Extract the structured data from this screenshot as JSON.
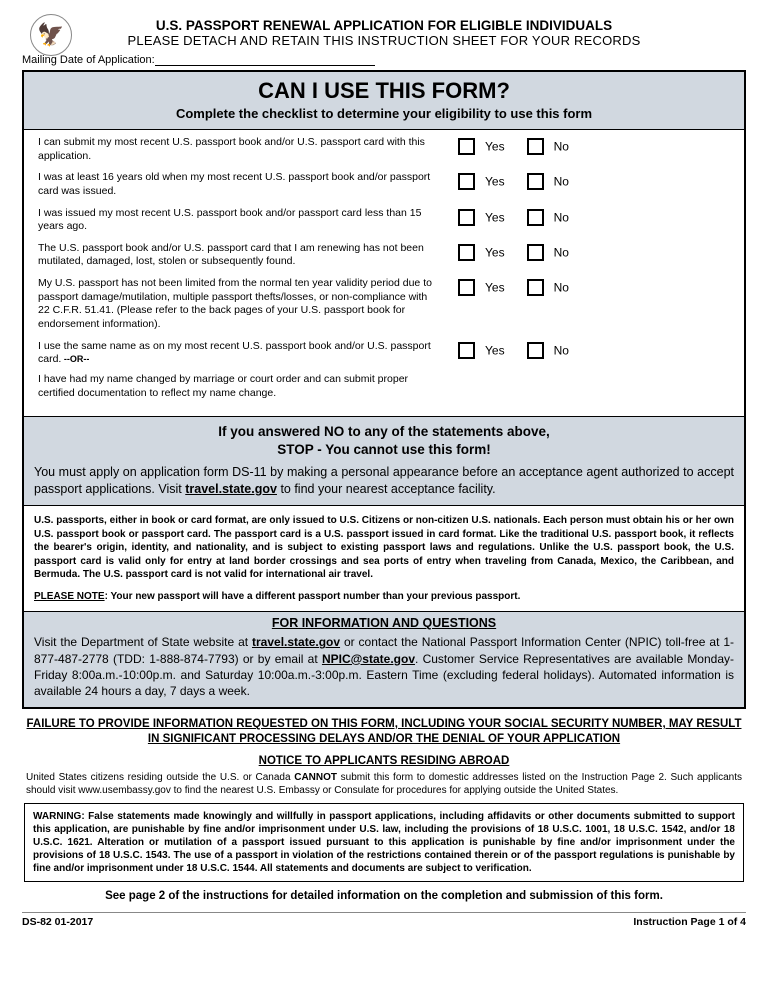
{
  "colors": {
    "blue_bg": "#d1d8e0",
    "text": "#000000",
    "border": "#000000",
    "page_bg": "#ffffff"
  },
  "header": {
    "title": "U.S. PASSPORT RENEWAL APPLICATION FOR ELIGIBLE INDIVIDUALS",
    "subtitle": "PLEASE DETACH AND RETAIN THIS INSTRUCTION SHEET FOR YOUR RECORDS",
    "mailing_label": "Mailing Date of Application:"
  },
  "question_header": {
    "title": "CAN I USE THIS FORM?",
    "subtitle": "Complete the checklist to determine your eligibility to use this form"
  },
  "yes_label": "Yes",
  "no_label": "No",
  "checklist": [
    {
      "text": "I can submit my most recent U.S. passport book and/or U.S. passport card with this application."
    },
    {
      "text": "I was at least 16 years old when my most recent U.S. passport book and/or passport card was issued."
    },
    {
      "text": "I was issued my most recent U.S. passport book and/or passport card less than 15 years ago."
    },
    {
      "text": "The U.S. passport book and/or U.S. passport card that I am renewing has not been mutilated, damaged, lost, stolen or subsequently found."
    },
    {
      "text": "My U.S. passport has not been limited from the normal ten year validity period due to passport damage/mutilation, multiple passport thefts/losses, or non-compliance with 22 C.F.R. 51.41.  (Please refer to the back pages of your U.S. passport book for endorsement information)."
    },
    {
      "text": "I use the same name as on my most recent U.S. passport book and/or U.S. passport card.",
      "or": "--OR--",
      "text2": "I have had my name changed by marriage or court order and can submit proper certified documentation to reflect my name change."
    }
  ],
  "stop": {
    "heading1": "If you answered NO to any of the statements above,",
    "heading2": "STOP - You cannot use this form!",
    "body_pre": "You must apply on application form DS-11 by making a personal appearance before an acceptance agent authorized to accept passport applications. Visit ",
    "link": "travel.state.gov",
    "body_post": " to find your nearest acceptance facility."
  },
  "info_para": "U.S. passports, either in book or card format, are only issued to U.S. Citizens or non-citizen U.S. nationals. Each person must obtain his or her own U.S. passport book or passport card. The passport card is a U.S. passport issued in card format. Like the traditional U.S. passport book, it reflects the bearer's origin, identity, and nationality, and is subject to existing passport laws and regulations. Unlike the U.S. passport book, the U.S. passport card is valid only for entry at land border crossings and sea ports of entry when traveling from Canada, Mexico, the Caribbean, and Bermuda. The U.S. passport card is not valid for international air travel.",
  "please_note_label": "PLEASE NOTE",
  "please_note_text": ": Your new passport will have a different passport number than your previous passport.",
  "info_q": {
    "heading": "FOR INFORMATION AND QUESTIONS",
    "pre": "Visit the Department of State website at ",
    "link1": "travel.state.gov",
    "mid1": " or contact the National Passport Information Center (NPIC) toll-free at 1-877-487-2778 (TDD: 1-888-874-7793) or by email at ",
    "link2": "NPIC@state.gov",
    "post": ".  Customer Service Representatives are available Monday-Friday 8:00a.m.-10:00p.m. and Saturday 10:00a.m.-3:00p.m. Eastern Time (excluding federal holidays). Automated information is available 24 hours a day, 7 days a week."
  },
  "failure": "FAILURE TO PROVIDE INFORMATION REQUESTED ON THIS FORM, INCLUDING YOUR SOCIAL SECURITY NUMBER, MAY RESULT IN SIGNIFICANT PROCESSING DELAYS AND/OR THE DENIAL OF YOUR APPLICATION",
  "notice": {
    "heading": "NOTICE TO APPLICANTS RESIDING ABROAD",
    "pre": "United States citizens residing outside the U.S. or Canada ",
    "cannot": "CANNOT",
    "post": " submit this form to domestic addresses listed on the Instruction Page 2.  Such applicants should visit www.usembassy.gov to find the nearest U.S. Embassy or Consulate for procedures for applying outside the United States."
  },
  "warning": "WARNING:  False statements made knowingly and willfully in passport applications, including affidavits or other documents submitted to support this application, are punishable by fine and/or imprisonment under U.S. law, including the provisions of 18 U.S.C. 1001, 18 U.S.C. 1542, and/or 18 U.S.C. 1621.  Alteration or mutilation of a passport issued pursuant to this application is punishable by fine and/or imprisonment under the provisions of 18 U.S.C. 1543.  The use of a passport in violation of the restrictions contained therein or of the passport regulations is punishable by fine and/or imprisonment under 18 U.S.C. 1544.  All statements and documents are subject to verification.",
  "see_page": "See page 2 of the instructions for detailed information on the completion and submission of this form.",
  "footer": {
    "left": "DS-82 01-2017",
    "right": "Instruction Page 1 of 4"
  }
}
